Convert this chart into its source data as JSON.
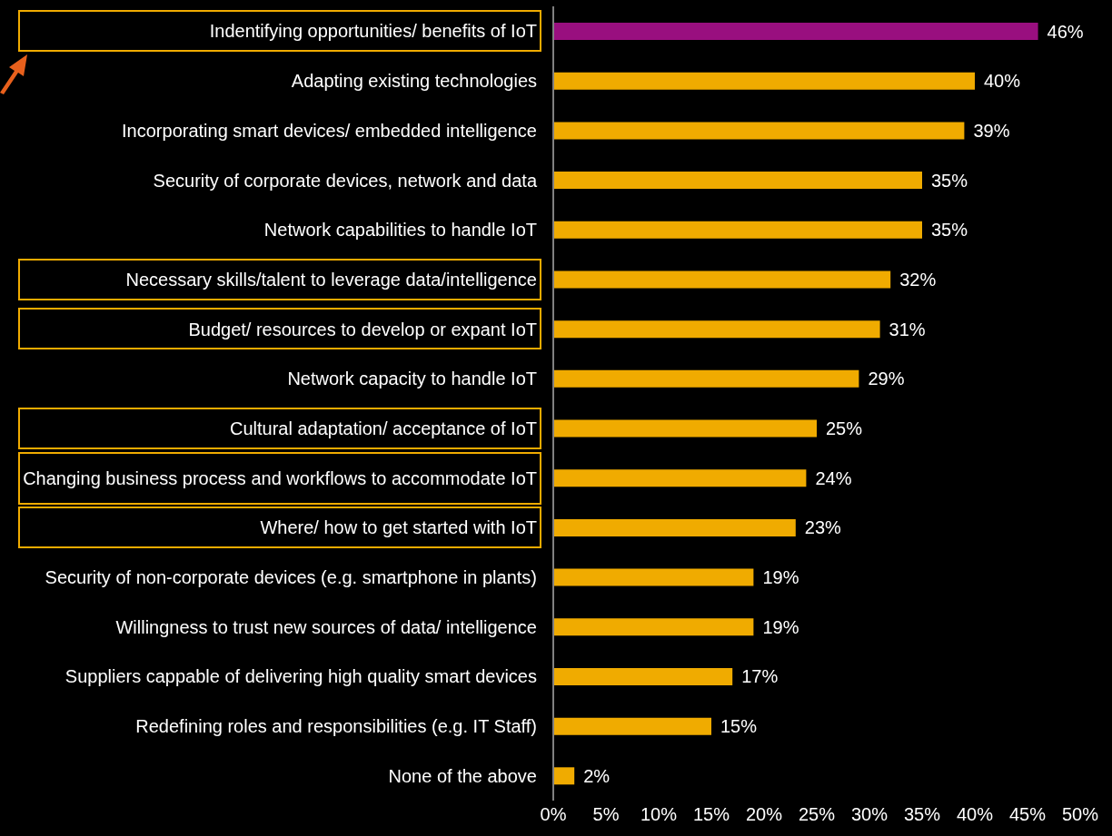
{
  "chart_data": {
    "type": "bar",
    "orientation": "horizontal",
    "categories": [
      "Indentifying opportunities/ benefits of IoT",
      "Adapting existing technologies",
      "Incorporating smart devices/ embedded intelligence",
      "Security of corporate devices, network and data",
      "Network capabilities to handle IoT",
      "Necessary skills/talent to leverage data/intelligence",
      "Budget/ resources to develop or expant IoT",
      "Network capacity to handle IoT",
      "Cultural adaptation/ acceptance of IoT",
      "Changing business process and workflows to accommodate IoT",
      "Where/ how to get started with IoT",
      "Security of non-corporate devices (e.g. smartphone in plants)",
      "Willingness to trust new sources of data/ intelligence",
      "Suppliers cappable of delivering high quality smart devices",
      "Redefining roles and responsibilities (e.g. IT Staff)",
      "None of the above"
    ],
    "values": [
      46,
      40,
      39,
      35,
      35,
      32,
      31,
      29,
      25,
      24,
      23,
      19,
      19,
      17,
      15,
      2
    ],
    "colors": [
      "#990f7f",
      "#f0ab00",
      "#f0ab00",
      "#f0ab00",
      "#f0ab00",
      "#f0ab00",
      "#f0ab00",
      "#f0ab00",
      "#f0ab00",
      "#f0ab00",
      "#f0ab00",
      "#f0ab00",
      "#f0ab00",
      "#f0ab00",
      "#f0ab00",
      "#f0ab00"
    ],
    "value_labels": [
      "46%",
      "40%",
      "39%",
      "35%",
      "35%",
      "32%",
      "31%",
      "29%",
      "25%",
      "24%",
      "23%",
      "19%",
      "19%",
      "17%",
      "15%",
      "2%"
    ],
    "xlim": [
      0,
      50
    ],
    "xticks": [
      {
        "value": 0,
        "label": "0%"
      },
      {
        "value": 5,
        "label": "5%"
      },
      {
        "value": 10,
        "label": "10%"
      },
      {
        "value": 15,
        "label": "15%"
      },
      {
        "value": 20,
        "label": "20%"
      },
      {
        "value": 25,
        "label": "25%"
      },
      {
        "value": 30,
        "label": "30%"
      },
      {
        "value": 35,
        "label": "35%"
      },
      {
        "value": 40,
        "label": "40%"
      },
      {
        "value": 45,
        "label": "45%"
      },
      {
        "value": 50,
        "label": "50%"
      }
    ],
    "grid": false,
    "legend": false
  }
}
